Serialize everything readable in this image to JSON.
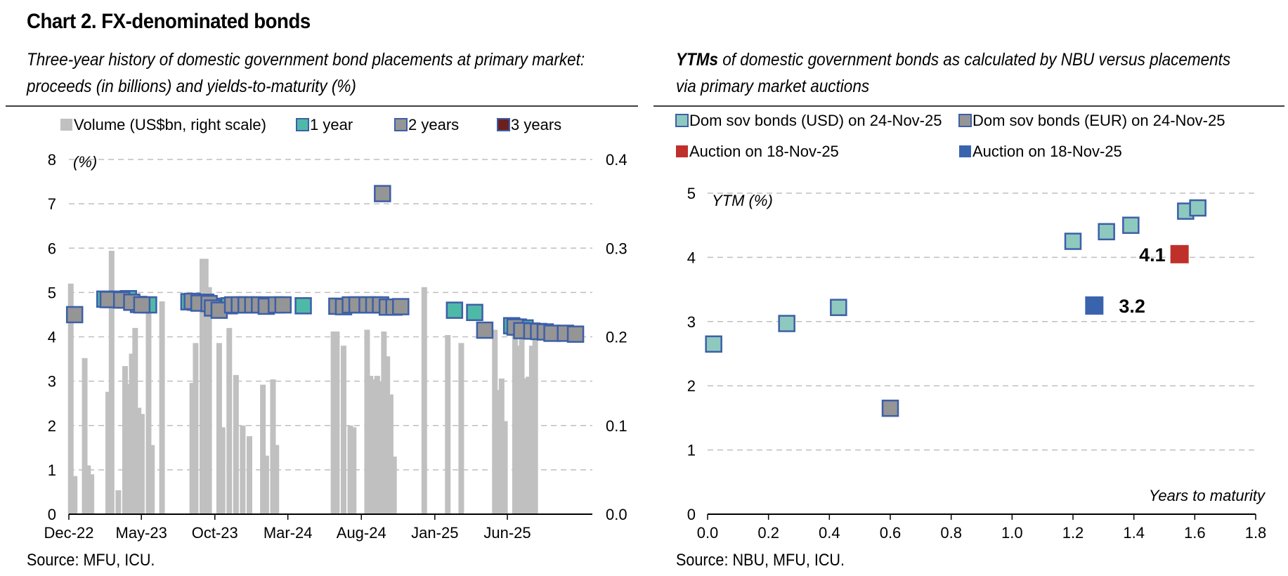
{
  "title": "Chart 2. FX-denominated bonds",
  "left_panel": {
    "subtitle_line1": "Three-year history of domestic government bond placements at primary market:",
    "subtitle_line2": "proceeds (in billions) and yields-to-maturity (%)",
    "source": "Source: MFU, ICU."
  },
  "right_panel": {
    "subtitle_bold": "YTMs",
    "subtitle_line1_rest": " of domestic government bonds as calculated by NBU versus placements",
    "subtitle_line2": "via primary market auctions",
    "source": "Source: NBU, MFU, ICU."
  },
  "colors": {
    "volume": "#c0c0c0",
    "one_year": "#4fb9a8",
    "two_years": "#959595",
    "three_years": "#6b1f1f",
    "marker_edge": "#3d5fa8",
    "usd_fill": "#8ec9bf",
    "auction_red": "#c0302a",
    "auction_blue": "#3a63ad",
    "grid": "#bfbfbf"
  },
  "chart_data": [
    {
      "type": "bar",
      "description_tag": "left",
      "legend": [
        "Volume (US$bn, right scale)",
        "1 year",
        "2 years",
        "3 years"
      ],
      "legend_placement": "top",
      "ylabel": "(%)",
      "ylim": [
        0,
        8
      ],
      "y_ticks": [
        "0",
        "1",
        "2",
        "3",
        "4",
        "5",
        "6",
        "7",
        "8"
      ],
      "y2lim": [
        0,
        0.4
      ],
      "y2_ticks": [
        "0.0",
        "0.1",
        "0.2",
        "0.3",
        "0.4"
      ],
      "x_range": [
        "2022-12-01",
        "2025-11-25"
      ],
      "x_ticks": [
        {
          "label": "Dec-22",
          "date": "2022-12-01"
        },
        {
          "label": "May-23",
          "date": "2023-05-01"
        },
        {
          "label": "Oct-23",
          "date": "2023-10-01"
        },
        {
          "label": "Mar-24",
          "date": "2024-03-01"
        },
        {
          "label": "Aug-24",
          "date": "2024-08-01"
        },
        {
          "label": "Jan-25",
          "date": "2025-01-01"
        },
        {
          "label": "Jun-25",
          "date": "2025-06-01"
        }
      ],
      "grid": true,
      "volume_bars": [
        {
          "date": "2022-12-05",
          "value": 0.26
        },
        {
          "date": "2022-12-13",
          "value": 0.043
        },
        {
          "date": "2023-01-03",
          "value": 0.176
        },
        {
          "date": "2023-01-10",
          "value": 0.055
        },
        {
          "date": "2023-01-17",
          "value": 0.045
        },
        {
          "date": "2023-02-21",
          "value": 0.138
        },
        {
          "date": "2023-02-28",
          "value": 0.297
        },
        {
          "date": "2023-03-14",
          "value": 0.027
        },
        {
          "date": "2023-03-28",
          "value": 0.167
        },
        {
          "date": "2023-04-04",
          "value": 0.147
        },
        {
          "date": "2023-04-11",
          "value": 0.181
        },
        {
          "date": "2023-04-18",
          "value": 0.21
        },
        {
          "date": "2023-04-25",
          "value": 0.12
        },
        {
          "date": "2023-05-02",
          "value": 0.113
        },
        {
          "date": "2023-05-16",
          "value": 0.245
        },
        {
          "date": "2023-05-23",
          "value": 0.078
        },
        {
          "date": "2023-06-13",
          "value": 0.24
        },
        {
          "date": "2023-08-15",
          "value": 0.148
        },
        {
          "date": "2023-08-22",
          "value": 0.193
        },
        {
          "date": "2023-09-05",
          "value": 0.288
        },
        {
          "date": "2023-09-12",
          "value": 0.288
        },
        {
          "date": "2023-09-19",
          "value": 0.256
        },
        {
          "date": "2023-10-10",
          "value": 0.193
        },
        {
          "date": "2023-10-17",
          "value": 0.098
        },
        {
          "date": "2023-10-31",
          "value": 0.21
        },
        {
          "date": "2023-11-14",
          "value": 0.157
        },
        {
          "date": "2023-11-28",
          "value": 0.1
        },
        {
          "date": "2023-12-12",
          "value": 0.088
        },
        {
          "date": "2024-01-09",
          "value": 0.146
        },
        {
          "date": "2024-01-16",
          "value": 0.066
        },
        {
          "date": "2024-01-30",
          "value": 0.152
        },
        {
          "date": "2024-02-06",
          "value": 0.078
        },
        {
          "date": "2024-06-04",
          "value": 0.206
        },
        {
          "date": "2024-06-11",
          "value": 0.206
        },
        {
          "date": "2024-06-25",
          "value": 0.19
        },
        {
          "date": "2024-07-09",
          "value": 0.1
        },
        {
          "date": "2024-07-16",
          "value": 0.098
        },
        {
          "date": "2024-08-13",
          "value": 0.208
        },
        {
          "date": "2024-08-20",
          "value": 0.156
        },
        {
          "date": "2024-08-27",
          "value": 0.152
        },
        {
          "date": "2024-09-03",
          "value": 0.156
        },
        {
          "date": "2024-09-10",
          "value": 0.15
        },
        {
          "date": "2024-09-17",
          "value": 0.206
        },
        {
          "date": "2024-09-24",
          "value": 0.178
        },
        {
          "date": "2024-10-01",
          "value": 0.135
        },
        {
          "date": "2024-10-08",
          "value": 0.065
        },
        {
          "date": "2024-12-10",
          "value": 0.256
        },
        {
          "date": "2025-01-28",
          "value": 0.202
        },
        {
          "date": "2025-02-25",
          "value": 0.193
        },
        {
          "date": "2025-05-06",
          "value": 0.208
        },
        {
          "date": "2025-05-13",
          "value": 0.14
        },
        {
          "date": "2025-05-20",
          "value": 0.153
        },
        {
          "date": "2025-05-27",
          "value": 0.105
        },
        {
          "date": "2025-06-17",
          "value": 0.205
        },
        {
          "date": "2025-06-24",
          "value": 0.19
        },
        {
          "date": "2025-07-01",
          "value": 0.202
        },
        {
          "date": "2025-07-08",
          "value": 0.153
        },
        {
          "date": "2025-07-15",
          "value": 0.155
        },
        {
          "date": "2025-07-22",
          "value": 0.19
        },
        {
          "date": "2025-07-29",
          "value": 0.205
        }
      ],
      "series": [
        {
          "name": "1 year",
          "points": [
            {
              "date": "2023-02-14",
              "y": 4.85
            },
            {
              "date": "2023-02-28",
              "y": 4.84
            },
            {
              "date": "2023-03-14",
              "y": 4.85
            },
            {
              "date": "2023-03-28",
              "y": 4.83
            },
            {
              "date": "2023-04-04",
              "y": 4.86
            },
            {
              "date": "2023-04-25",
              "y": 4.73
            },
            {
              "date": "2023-05-16",
              "y": 4.72
            },
            {
              "date": "2023-08-08",
              "y": 4.79
            },
            {
              "date": "2023-08-22",
              "y": 4.78
            },
            {
              "date": "2023-09-12",
              "y": 4.78
            },
            {
              "date": "2023-10-03",
              "y": 4.69
            },
            {
              "date": "2023-10-31",
              "y": 4.7
            },
            {
              "date": "2024-04-02",
              "y": 4.7
            },
            {
              "date": "2025-02-11",
              "y": 4.6
            },
            {
              "date": "2025-03-25",
              "y": 4.55
            },
            {
              "date": "2025-06-10",
              "y": 4.25
            },
            {
              "date": "2025-06-24",
              "y": 4.22
            },
            {
              "date": "2025-07-08",
              "y": 4.2
            }
          ]
        },
        {
          "name": "2 years",
          "points": [
            {
              "date": "2022-12-13",
              "y": 4.5
            },
            {
              "date": "2023-02-21",
              "y": 4.84
            },
            {
              "date": "2023-03-21",
              "y": 4.83
            },
            {
              "date": "2023-04-11",
              "y": 4.78
            },
            {
              "date": "2023-05-02",
              "y": 4.72
            },
            {
              "date": "2023-08-15",
              "y": 4.8
            },
            {
              "date": "2023-08-29",
              "y": 4.76
            },
            {
              "date": "2023-09-19",
              "y": 4.75
            },
            {
              "date": "2023-09-26",
              "y": 4.65
            },
            {
              "date": "2023-10-10",
              "y": 4.6
            },
            {
              "date": "2023-11-07",
              "y": 4.72
            },
            {
              "date": "2023-11-21",
              "y": 4.72
            },
            {
              "date": "2023-12-05",
              "y": 4.72
            },
            {
              "date": "2023-12-19",
              "y": 4.72
            },
            {
              "date": "2024-01-02",
              "y": 4.72
            },
            {
              "date": "2024-01-16",
              "y": 4.69
            },
            {
              "date": "2024-02-06",
              "y": 4.72
            },
            {
              "date": "2024-02-20",
              "y": 4.72
            },
            {
              "date": "2024-06-11",
              "y": 4.69
            },
            {
              "date": "2024-06-25",
              "y": 4.68
            },
            {
              "date": "2024-07-09",
              "y": 4.72
            },
            {
              "date": "2024-07-23",
              "y": 4.72
            },
            {
              "date": "2024-08-13",
              "y": 4.72
            },
            {
              "date": "2024-08-27",
              "y": 4.72
            },
            {
              "date": "2024-09-10",
              "y": 4.72
            },
            {
              "date": "2024-09-24",
              "y": 4.67
            },
            {
              "date": "2024-10-08",
              "y": 4.67
            },
            {
              "date": "2024-10-22",
              "y": 4.68
            },
            {
              "date": "2024-09-14",
              "y": 7.23
            },
            {
              "date": "2025-04-15",
              "y": 4.15
            },
            {
              "date": "2025-06-17",
              "y": 4.22
            },
            {
              "date": "2025-07-01",
              "y": 4.14
            },
            {
              "date": "2025-07-22",
              "y": 4.13
            },
            {
              "date": "2025-08-05",
              "y": 4.12
            },
            {
              "date": "2025-08-19",
              "y": 4.11
            },
            {
              "date": "2025-09-02",
              "y": 4.08
            },
            {
              "date": "2025-09-30",
              "y": 4.08
            },
            {
              "date": "2025-10-21",
              "y": 4.06
            }
          ]
        },
        {
          "name": "3 years",
          "points": []
        }
      ]
    },
    {
      "type": "scatter",
      "description_tag": "right",
      "legend": [
        "Dom sov bonds (USD) on 24-Nov-25",
        "Dom sov bonds (EUR) on 24-Nov-25",
        "Auction on 18-Nov-25",
        "Auction on 18-Nov-25"
      ],
      "legend_placement": "top",
      "ylabel": "YTM (%)",
      "xlabel": "Years to maturity",
      "xlim": [
        0,
        1.8
      ],
      "ylim": [
        0,
        5
      ],
      "x_ticks": [
        "0.0",
        "0.2",
        "0.4",
        "0.6",
        "0.8",
        "1.0",
        "1.2",
        "1.4",
        "1.6",
        "1.8"
      ],
      "y_ticks": [
        "0",
        "1",
        "2",
        "3",
        "4",
        "5"
      ],
      "grid": true,
      "series": [
        {
          "name": "Dom sov bonds (USD) on 24-Nov-25",
          "points": [
            {
              "x": 0.02,
              "y": 2.65
            },
            {
              "x": 0.26,
              "y": 2.97
            },
            {
              "x": 0.43,
              "y": 3.22
            },
            {
              "x": 1.2,
              "y": 4.25
            },
            {
              "x": 1.31,
              "y": 4.4
            },
            {
              "x": 1.39,
              "y": 4.5
            },
            {
              "x": 1.57,
              "y": 4.72
            },
            {
              "x": 1.61,
              "y": 4.77
            }
          ]
        },
        {
          "name": "Dom sov bonds (EUR) on 24-Nov-25",
          "points": [
            {
              "x": 0.6,
              "y": 1.65
            }
          ]
        },
        {
          "name": "Auction on 18-Nov-25",
          "color": "red",
          "points": [
            {
              "x": 1.55,
              "y": 4.05,
              "label": "4.1"
            }
          ]
        },
        {
          "name": "Auction on 18-Nov-25",
          "color": "blue",
          "points": [
            {
              "x": 1.27,
              "y": 3.25,
              "label": "3.2"
            }
          ]
        }
      ]
    }
  ]
}
